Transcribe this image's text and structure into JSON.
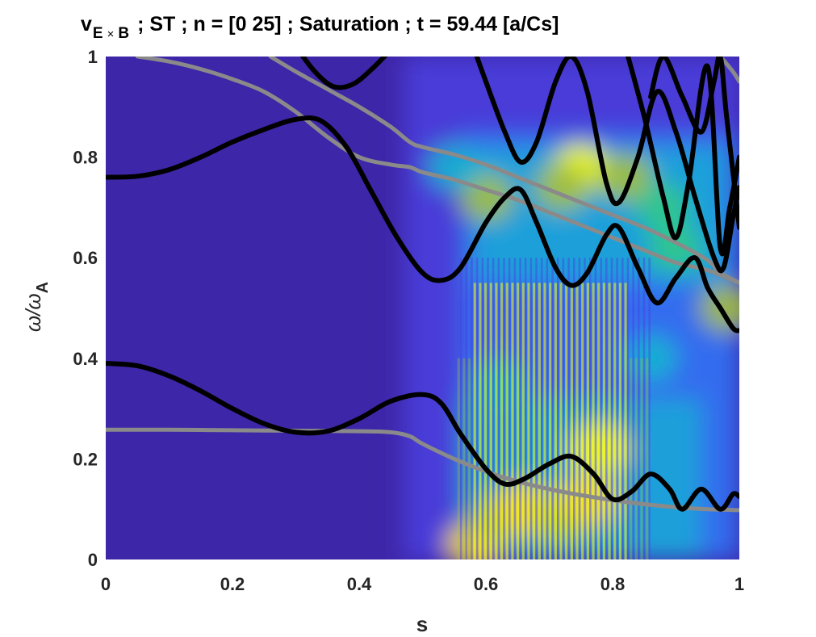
{
  "chart_data": {
    "type": "heatmap",
    "title": {
      "prefix": "v",
      "subscript_a": "E",
      "subscript_op": "×",
      "subscript_b": "B",
      "rest": "; ST ; n = [0 25] ; Saturation ; t = 59.44 [a/Cs]"
    },
    "xlabel": "s",
    "ylabel": {
      "main": "ω/ω",
      "sub": "A"
    },
    "xlim": [
      0,
      1
    ],
    "ylim": [
      0,
      1
    ],
    "xticks": [
      "0",
      "0.2",
      "0.4",
      "0.6",
      "0.8",
      "1"
    ],
    "yticks": [
      "0",
      "0.2",
      "0.4",
      "0.6",
      "0.8",
      "1"
    ],
    "colormap": [
      "#3e26a8",
      "#4a3fe0",
      "#2e7ef7",
      "#14b5d0",
      "#30c88a",
      "#a5be3a",
      "#f5d436",
      "#f9fb0e"
    ],
    "hotspots": [
      {
        "s": 0.58,
        "w": 0.03,
        "i": 0.85
      },
      {
        "s": 0.62,
        "w": 0.08,
        "i": 0.7
      },
      {
        "s": 0.66,
        "w": 0.1,
        "i": 0.8
      },
      {
        "s": 0.72,
        "w": 0.08,
        "i": 0.75
      },
      {
        "s": 0.78,
        "w": 0.22,
        "i": 0.95
      },
      {
        "s": 0.76,
        "w": 0.12,
        "i": 0.85
      },
      {
        "s": 0.75,
        "w": 0.78,
        "i": 0.95
      },
      {
        "s": 0.72,
        "w": 0.74,
        "i": 0.7
      },
      {
        "s": 0.6,
        "w": 0.72,
        "i": 0.65
      },
      {
        "s": 0.55,
        "w": 0.78,
        "i": 0.45
      },
      {
        "s": 0.82,
        "w": 0.76,
        "i": 0.7
      },
      {
        "s": 0.88,
        "w": 0.7,
        "i": 0.55
      },
      {
        "s": 0.9,
        "w": 0.62,
        "i": 0.5
      },
      {
        "s": 0.98,
        "w": 0.5,
        "i": 0.75
      },
      {
        "s": 0.86,
        "w": 0.4,
        "i": 0.4
      },
      {
        "s": 0.62,
        "w": 0.35,
        "i": 0.4
      }
    ],
    "black_curves": [
      {
        "name": "",
        "x": [
          0.3,
          0.33,
          0.36,
          0.39,
          0.42,
          0.455
        ],
        "y": [
          1.02,
          0.97,
          0.94,
          0.945,
          0.975,
          1.02
        ]
      },
      {
        "name": "",
        "x": [
          0,
          0.05,
          0.1,
          0.15,
          0.2,
          0.25,
          0.3,
          0.34,
          0.38,
          0.42,
          0.46,
          0.5,
          0.53,
          0.56,
          0.6,
          0.63,
          0.655,
          0.68,
          0.71,
          0.735,
          0.76,
          0.79,
          0.81,
          0.84,
          0.87,
          0.9,
          0.93,
          0.95,
          0.97,
          0.99,
          1.0
        ],
        "y": [
          0.76,
          0.762,
          0.775,
          0.8,
          0.83,
          0.855,
          0.875,
          0.872,
          0.82,
          0.73,
          0.64,
          0.57,
          0.555,
          0.58,
          0.67,
          0.72,
          0.735,
          0.67,
          0.58,
          0.545,
          0.57,
          0.645,
          0.66,
          0.58,
          0.51,
          0.56,
          0.6,
          0.54,
          0.5,
          0.46,
          0.455
        ]
      },
      {
        "name": "",
        "x": [
          0.58,
          0.6,
          0.63,
          0.655,
          0.68,
          0.71,
          0.735,
          0.76,
          0.79,
          0.81,
          0.84,
          0.87,
          0.9,
          0.93,
          0.96,
          0.975,
          0.99,
          1.0
        ],
        "y": [
          1.02,
          0.95,
          0.85,
          0.79,
          0.83,
          0.95,
          1.0,
          0.93,
          0.75,
          0.71,
          0.8,
          0.93,
          0.85,
          0.72,
          0.6,
          0.58,
          0.68,
          0.74
        ]
      },
      {
        "name": "",
        "x": [
          0.82,
          0.85,
          0.88,
          0.9,
          0.92,
          0.95,
          0.97,
          0.985,
          1.0
        ],
        "y": [
          1.02,
          0.88,
          0.72,
          0.64,
          0.75,
          0.98,
          0.62,
          0.7,
          0.8
        ]
      },
      {
        "name": "",
        "x": [
          0.86,
          0.88,
          0.91,
          0.94,
          0.96,
          0.97,
          0.98,
          1.0
        ],
        "y": [
          0.92,
          1.0,
          0.92,
          0.85,
          0.95,
          1.0,
          0.88,
          0.66
        ]
      },
      {
        "name": "",
        "x": [
          0,
          0.05,
          0.1,
          0.15,
          0.2,
          0.25,
          0.3,
          0.35,
          0.4,
          0.45,
          0.5,
          0.53,
          0.56,
          0.6,
          0.63,
          0.66,
          0.7,
          0.735,
          0.77,
          0.8,
          0.83,
          0.86,
          0.89,
          0.91,
          0.94,
          0.97,
          0.99,
          1.0
        ],
        "y": [
          0.39,
          0.385,
          0.365,
          0.335,
          0.3,
          0.27,
          0.253,
          0.255,
          0.28,
          0.315,
          0.328,
          0.31,
          0.25,
          0.18,
          0.15,
          0.16,
          0.19,
          0.205,
          0.17,
          0.12,
          0.135,
          0.17,
          0.14,
          0.1,
          0.14,
          0.1,
          0.13,
          0.125
        ]
      }
    ],
    "gray_curves": [
      {
        "name": "",
        "x": [
          0.05,
          0.1,
          0.15,
          0.2,
          0.25,
          0.3,
          0.35,
          0.4,
          0.45,
          0.48,
          0.5,
          0.55,
          0.6,
          0.65,
          0.7,
          0.75,
          0.8,
          0.85,
          0.9,
          0.95,
          1.0
        ],
        "y": [
          1.0,
          0.99,
          0.975,
          0.955,
          0.93,
          0.89,
          0.84,
          0.8,
          0.785,
          0.78,
          0.77,
          0.755,
          0.735,
          0.715,
          0.69,
          0.665,
          0.64,
          0.615,
          0.59,
          0.575,
          0.55
        ]
      },
      {
        "name": "",
        "x": [
          0.26,
          0.3,
          0.35,
          0.4,
          0.45,
          0.48,
          0.5,
          0.55,
          0.6,
          0.65,
          0.7,
          0.75,
          0.8,
          0.85,
          0.9,
          0.95,
          0.97,
          1.0
        ],
        "y": [
          1.0,
          0.97,
          0.935,
          0.9,
          0.86,
          0.83,
          0.82,
          0.805,
          0.785,
          0.76,
          0.735,
          0.71,
          0.685,
          0.66,
          0.63,
          0.595,
          0.57,
          0.55
        ]
      },
      {
        "name": "",
        "x": [
          0.97,
          0.99,
          1.0
        ],
        "y": [
          1.0,
          0.97,
          0.95
        ]
      },
      {
        "name": "",
        "x": [
          0,
          0.1,
          0.2,
          0.3,
          0.4,
          0.45,
          0.48,
          0.5,
          0.55,
          0.6,
          0.65,
          0.7,
          0.75,
          0.8,
          0.85,
          0.9,
          0.95,
          1.0
        ],
        "y": [
          0.258,
          0.258,
          0.257,
          0.256,
          0.255,
          0.253,
          0.245,
          0.23,
          0.2,
          0.175,
          0.155,
          0.14,
          0.128,
          0.118,
          0.11,
          0.104,
          0.1,
          0.098
        ]
      }
    ],
    "curve_colors": {
      "black": "#000000",
      "gray": "#8a8a8a"
    },
    "grid": false,
    "legend": "none"
  }
}
